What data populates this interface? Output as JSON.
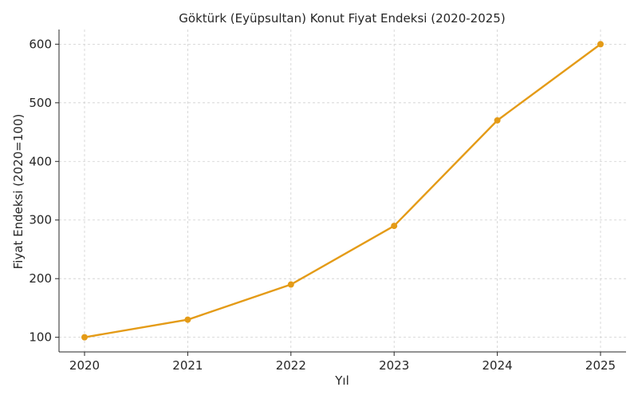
{
  "chart_data": {
    "type": "line",
    "title": "Göktürk (Eyüpsultan) Konut Fiyat Endeksi (2020-2025)",
    "xlabel": "Yıl",
    "ylabel": "Fiyat Endeksi (2020=100)",
    "x": [
      "2020",
      "2021",
      "2022",
      "2023",
      "2024",
      "2025"
    ],
    "series": [
      {
        "values": [
          100,
          130,
          190,
          290,
          470,
          600
        ]
      }
    ],
    "yticks": [
      100,
      200,
      300,
      400,
      500,
      600
    ],
    "ylim": [
      75,
      625
    ],
    "grid": true,
    "legend": "none",
    "color": "#E49B17"
  }
}
